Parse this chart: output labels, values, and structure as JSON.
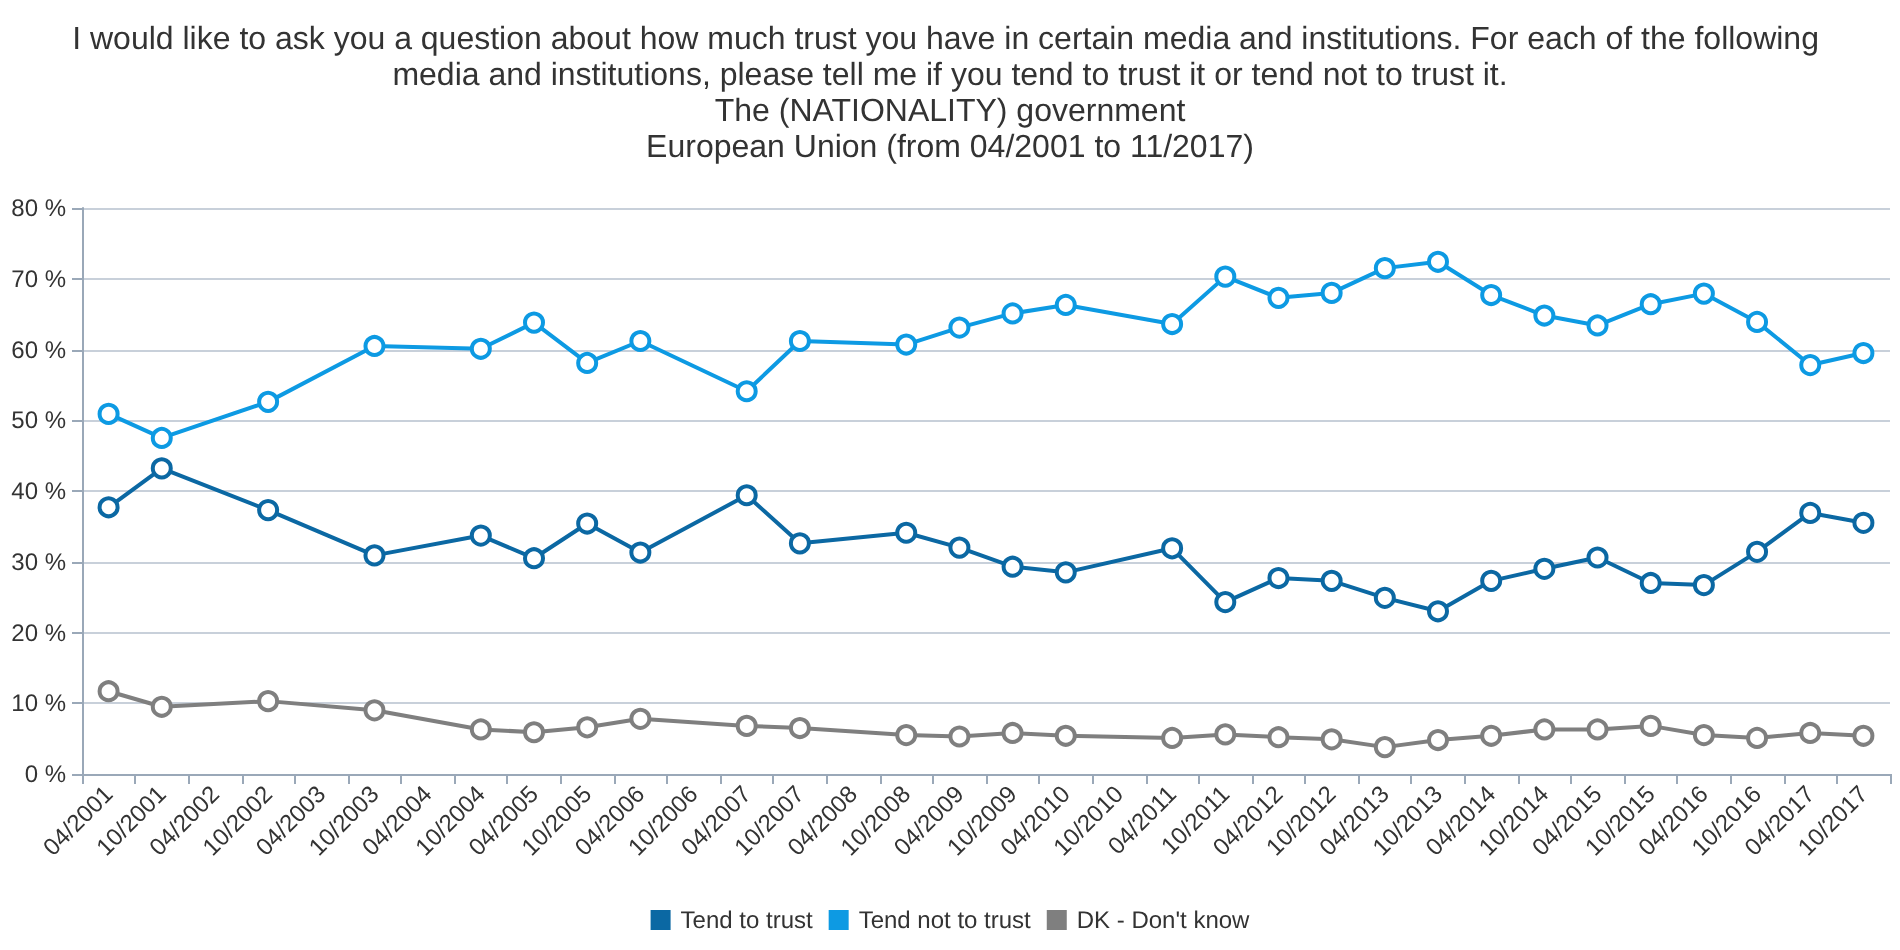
{
  "chart_data": {
    "type": "line",
    "title": "I would like to ask you a question about how much trust you have in certain media and institutions. For each of the following media and institutions, please tell me if you tend to trust it or tend not to trust it.",
    "subtitle": "The (NATIONALITY) government\nEuropean Union (from 04/2001 to 11/2017)",
    "categories": [
      "04/2001",
      "10/2001",
      "04/2002",
      "10/2002",
      "04/2003",
      "10/2003",
      "04/2004",
      "10/2004",
      "04/2005",
      "10/2005",
      "04/2006",
      "10/2006",
      "04/2007",
      "10/2007",
      "04/2008",
      "10/2008",
      "04/2009",
      "10/2009",
      "04/2010",
      "10/2010",
      "04/2011",
      "10/2011",
      "04/2012",
      "10/2012",
      "04/2013",
      "10/2013",
      "04/2014",
      "10/2014",
      "04/2015",
      "10/2015",
      "04/2016",
      "10/2016",
      "04/2017",
      "10/2017"
    ],
    "series": [
      {
        "name": "Tend to trust",
        "color": "#0b68a3",
        "values": [
          37.7,
          43.2,
          null,
          37.3,
          null,
          30.9,
          null,
          33.7,
          30.5,
          35.4,
          31.3,
          null,
          39.4,
          32.6,
          null,
          34.1,
          32.0,
          29.3,
          28.5,
          null,
          31.9,
          24.3,
          27.7,
          27.3,
          24.9,
          23.0,
          27.3,
          29.0,
          30.6,
          27.0,
          26.7,
          31.4,
          36.9,
          35.5
        ]
      },
      {
        "name": "Tend not to trust",
        "color": "#0d9ae3",
        "values": [
          50.9,
          47.5,
          null,
          52.6,
          null,
          60.5,
          null,
          60.1,
          63.8,
          58.1,
          61.2,
          null,
          54.1,
          61.2,
          null,
          60.7,
          63.1,
          65.1,
          66.3,
          null,
          63.6,
          70.3,
          67.3,
          68.0,
          71.5,
          72.4,
          67.7,
          64.8,
          63.4,
          66.4,
          67.9,
          63.9,
          57.8,
          59.5
        ]
      },
      {
        "name": "DK - Don't know",
        "color": "#7f7f7f",
        "values": [
          11.7,
          9.5,
          null,
          10.3,
          null,
          9.0,
          null,
          6.3,
          5.9,
          6.6,
          7.8,
          null,
          6.8,
          6.5,
          null,
          5.5,
          5.3,
          5.8,
          5.4,
          null,
          5.1,
          5.6,
          5.2,
          4.9,
          3.8,
          4.8,
          5.4,
          6.3,
          6.3,
          6.8,
          5.5,
          5.1,
          5.8,
          5.4
        ]
      }
    ],
    "ylim": [
      0,
      80
    ],
    "yticks": [
      {
        "value": 0,
        "label": "0 %"
      },
      {
        "value": 10,
        "label": "10 %"
      },
      {
        "value": 20,
        "label": "20 %"
      },
      {
        "value": 30,
        "label": "30 %"
      },
      {
        "value": 40,
        "label": "40 %"
      },
      {
        "value": 50,
        "label": "50 %"
      },
      {
        "value": 60,
        "label": "60 %"
      },
      {
        "value": 70,
        "label": "70 %"
      },
      {
        "value": 80,
        "label": "80 %"
      }
    ],
    "grid": "y",
    "legend": "bottom",
    "marker": "circle",
    "line_style": "solid"
  }
}
